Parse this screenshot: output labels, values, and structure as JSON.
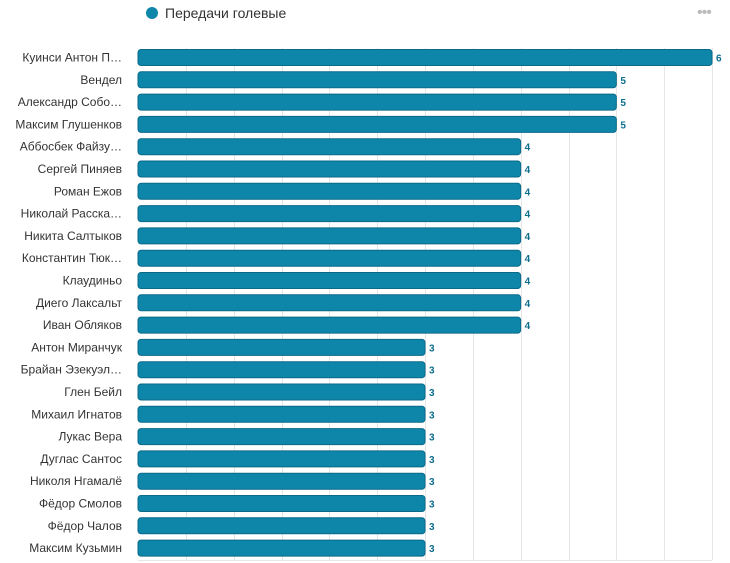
{
  "chart_data": {
    "type": "bar",
    "orientation": "horizontal",
    "title": "",
    "xlabel": "",
    "ylabel": "",
    "xlim": [
      0,
      6
    ],
    "grid": true,
    "legend_position": "top-left",
    "bar_color": "#0e86aa",
    "series": [
      {
        "name": "Передачи голевые",
        "values": [
          6,
          5,
          5,
          5,
          4,
          4,
          4,
          4,
          4,
          4,
          4,
          4,
          4,
          3,
          3,
          3,
          3,
          3,
          3,
          3,
          3,
          3,
          3
        ]
      }
    ],
    "categories": [
      "Куинси Антон П…",
      "Вендел",
      "Александр Собо…",
      "Максим Глушенков",
      "Аббосбек Файзу…",
      "Сергей Пиняев",
      "Роман Ежов",
      "Николай Расска…",
      "Никита Салтыков",
      "Константин Тюк…",
      "Клаудиньо",
      "Диего Лаксальт",
      "Иван Обляков",
      "Антон Миранчук",
      "Брайан Эзекуэл…",
      "Глен Бейл",
      "Михаил Игнатов",
      "Лукас Вера",
      "Дуглас Сантос",
      "Николя Нгамалё",
      "Фёдор Смолов",
      "Фёдор Чалов",
      "Максим Кузьмин"
    ]
  },
  "menu_icon": "ellipsis-icon",
  "menu_glyph": "•••"
}
